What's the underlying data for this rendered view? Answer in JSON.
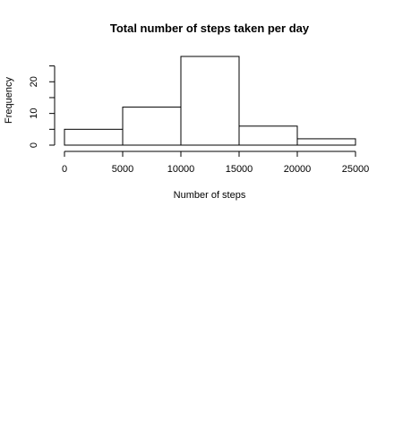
{
  "chart_data": {
    "type": "bar",
    "subtype": "histogram",
    "title": "Total number of steps taken per day",
    "xlabel": "Number of steps",
    "ylabel": "Frequency",
    "bins": [
      {
        "from": 0,
        "to": 5000,
        "count": 5
      },
      {
        "from": 5000,
        "to": 10000,
        "count": 12
      },
      {
        "from": 10000,
        "to": 15000,
        "count": 28
      },
      {
        "from": 15000,
        "to": 20000,
        "count": 6
      },
      {
        "from": 20000,
        "to": 25000,
        "count": 2
      }
    ],
    "xlim": [
      0,
      25000
    ],
    "ylim": [
      0,
      28
    ],
    "x_ticks": [
      "0",
      "5000",
      "10000",
      "15000",
      "20000",
      "25000"
    ],
    "y_ticks": [
      "0",
      "10",
      "20"
    ],
    "y_tick_values": [
      0,
      10,
      20
    ],
    "x_tick_values": [
      0,
      5000,
      10000,
      15000,
      20000,
      25000
    ],
    "minor_y_ticks": [
      5,
      15,
      25
    ],
    "grid": false,
    "legend": "none",
    "bar_fill": "#ffffff",
    "bar_stroke": "#000000"
  }
}
